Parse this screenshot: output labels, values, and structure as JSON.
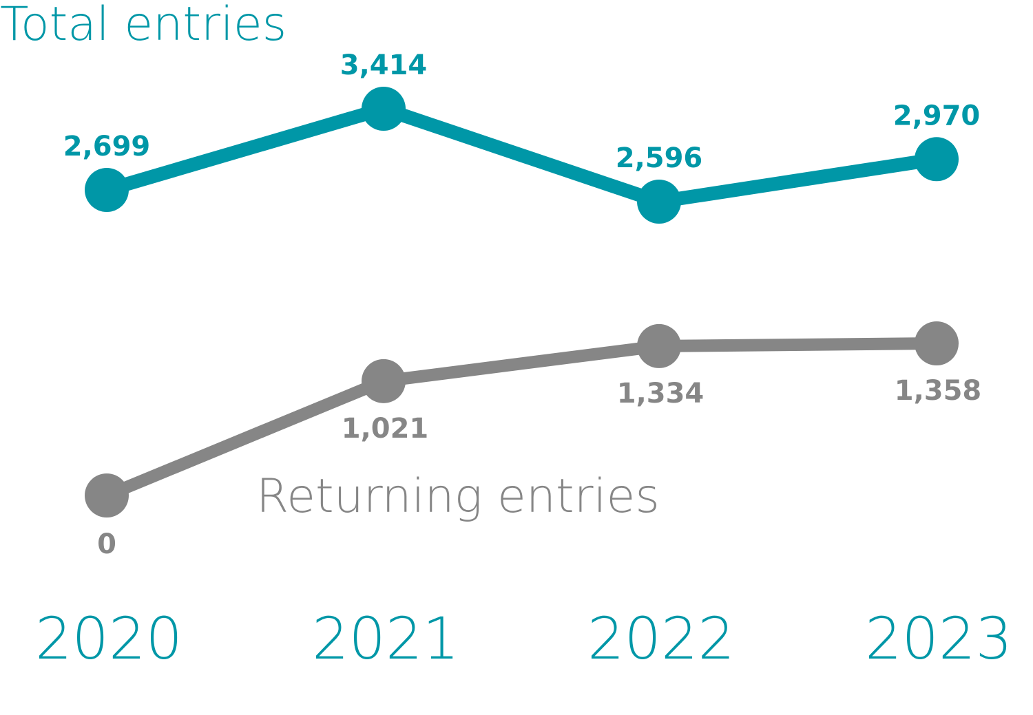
{
  "chart_data": {
    "type": "line",
    "categories": [
      "2020",
      "2021",
      "2022",
      "2023"
    ],
    "series": [
      {
        "name": "Total entries",
        "values": [
          2699,
          3414,
          2596,
          2970
        ],
        "labels": [
          "2,699",
          "3,414",
          "2,596",
          "2,970"
        ],
        "color": "#0097a7"
      },
      {
        "name": "Returning entries",
        "values": [
          0,
          1021,
          1334,
          1358
        ],
        "labels": [
          "0",
          "1,021",
          "1,334",
          "1,358"
        ],
        "color": "#868686"
      }
    ],
    "category_color": "#0097a7",
    "grid": false,
    "legend": "inline"
  }
}
